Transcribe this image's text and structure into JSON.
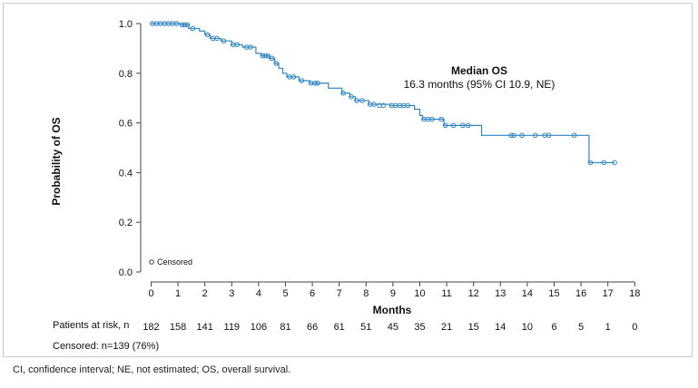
{
  "chart_data": {
    "type": "line",
    "title": "",
    "xlabel": "Months",
    "ylabel": "Probability of OS",
    "xlim": [
      0,
      18
    ],
    "ylim": [
      0,
      1
    ],
    "x_ticks": [
      "0",
      "1",
      "2",
      "3",
      "4",
      "5",
      "6",
      "7",
      "8",
      "9",
      "10",
      "11",
      "12",
      "13",
      "14",
      "15",
      "16",
      "17",
      "18"
    ],
    "y_ticks": [
      "0.0",
      "0.2",
      "0.4",
      "0.6",
      "0.8",
      "1.0"
    ],
    "grid": false,
    "series": [
      {
        "color": "#2f86c4",
        "step": [
          [
            0,
            1.0
          ],
          [
            1.1,
            0.995
          ],
          [
            1.4,
            0.98
          ],
          [
            1.8,
            0.97
          ],
          [
            2.0,
            0.955
          ],
          [
            2.2,
            0.94
          ],
          [
            2.6,
            0.93
          ],
          [
            3.0,
            0.915
          ],
          [
            3.4,
            0.905
          ],
          [
            3.9,
            0.88
          ],
          [
            4.1,
            0.87
          ],
          [
            4.4,
            0.86
          ],
          [
            4.6,
            0.84
          ],
          [
            4.75,
            0.82
          ],
          [
            4.9,
            0.8
          ],
          [
            5.05,
            0.785
          ],
          [
            5.5,
            0.77
          ],
          [
            5.9,
            0.76
          ],
          [
            6.6,
            0.74
          ],
          [
            7.1,
            0.72
          ],
          [
            7.4,
            0.705
          ],
          [
            7.6,
            0.69
          ],
          [
            8.1,
            0.675
          ],
          [
            8.9,
            0.67
          ],
          [
            9.8,
            0.655
          ],
          [
            10.0,
            0.63
          ],
          [
            10.1,
            0.615
          ],
          [
            10.9,
            0.59
          ],
          [
            12.3,
            0.55
          ],
          [
            16.3,
            0.44
          ],
          [
            17.25,
            0.44
          ]
        ],
        "censored": [
          [
            0.05,
            1.0
          ],
          [
            0.2,
            1.0
          ],
          [
            0.35,
            1.0
          ],
          [
            0.5,
            1.0
          ],
          [
            0.65,
            1.0
          ],
          [
            0.8,
            1.0
          ],
          [
            0.95,
            1.0
          ],
          [
            1.15,
            0.995
          ],
          [
            1.25,
            0.995
          ],
          [
            1.35,
            0.995
          ],
          [
            1.55,
            0.98
          ],
          [
            2.1,
            0.955
          ],
          [
            2.3,
            0.94
          ],
          [
            2.45,
            0.94
          ],
          [
            2.7,
            0.93
          ],
          [
            3.05,
            0.915
          ],
          [
            3.2,
            0.915
          ],
          [
            3.55,
            0.905
          ],
          [
            3.7,
            0.905
          ],
          [
            4.15,
            0.87
          ],
          [
            4.25,
            0.87
          ],
          [
            4.35,
            0.87
          ],
          [
            4.5,
            0.86
          ],
          [
            4.65,
            0.84
          ],
          [
            5.15,
            0.785
          ],
          [
            5.3,
            0.785
          ],
          [
            5.6,
            0.77
          ],
          [
            5.95,
            0.76
          ],
          [
            6.1,
            0.76
          ],
          [
            6.2,
            0.76
          ],
          [
            7.15,
            0.72
          ],
          [
            7.45,
            0.705
          ],
          [
            7.65,
            0.69
          ],
          [
            7.85,
            0.69
          ],
          [
            8.15,
            0.675
          ],
          [
            8.3,
            0.675
          ],
          [
            8.5,
            0.67
          ],
          [
            8.65,
            0.67
          ],
          [
            8.95,
            0.67
          ],
          [
            9.1,
            0.67
          ],
          [
            9.25,
            0.67
          ],
          [
            9.4,
            0.67
          ],
          [
            9.55,
            0.67
          ],
          [
            10.15,
            0.615
          ],
          [
            10.3,
            0.615
          ],
          [
            10.45,
            0.615
          ],
          [
            10.8,
            0.615
          ],
          [
            10.95,
            0.59
          ],
          [
            11.25,
            0.59
          ],
          [
            11.6,
            0.59
          ],
          [
            11.8,
            0.59
          ],
          [
            13.4,
            0.55
          ],
          [
            13.5,
            0.55
          ],
          [
            13.8,
            0.55
          ],
          [
            14.3,
            0.55
          ],
          [
            14.65,
            0.55
          ],
          [
            14.8,
            0.55
          ],
          [
            15.75,
            0.55
          ],
          [
            16.35,
            0.44
          ],
          [
            16.85,
            0.44
          ],
          [
            17.25,
            0.44
          ]
        ]
      }
    ],
    "annotation": {
      "heading": "Median OS",
      "text": "16.3 months (95% CI 10.9, NE)"
    },
    "legend": {
      "label": "Censored",
      "position": "bottom-left"
    },
    "risk_table": {
      "label": "Patients at risk, n",
      "values": [
        "182",
        "158",
        "141",
        "119",
        "106",
        "81",
        "66",
        "61",
        "51",
        "45",
        "35",
        "21",
        "15",
        "14",
        "10",
        "6",
        "5",
        "1",
        "0"
      ]
    },
    "censored_summary": "Censored: n=139 (76%)"
  },
  "footnote": "CI, confidence interval; NE, not estimated; OS, overall survival."
}
